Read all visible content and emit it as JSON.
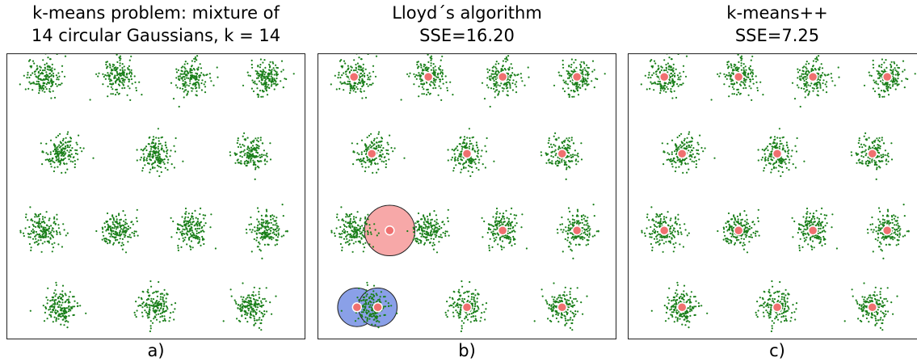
{
  "chart_data": [
    {
      "type": "scatter",
      "panel_label": "a)",
      "title_lines": [
        "k-means problem: mixture of",
        "14 circular Gaussians, k = 14"
      ],
      "point_color": "#1a7f1a",
      "clusters": [
        [
          0.12,
          0.92
        ],
        [
          0.37,
          0.92
        ],
        [
          0.62,
          0.92
        ],
        [
          0.87,
          0.92
        ],
        [
          0.18,
          0.65
        ],
        [
          0.5,
          0.65
        ],
        [
          0.82,
          0.65
        ],
        [
          0.12,
          0.38
        ],
        [
          0.37,
          0.38
        ],
        [
          0.62,
          0.38
        ],
        [
          0.87,
          0.38
        ],
        [
          0.18,
          0.11
        ],
        [
          0.5,
          0.11
        ],
        [
          0.82,
          0.11
        ]
      ],
      "centroids": [],
      "highlight_circles": []
    },
    {
      "type": "scatter",
      "panel_label": "b)",
      "title_lines": [
        "Lloyd´s algorithm",
        "SSE=16.20"
      ],
      "point_color": "#1a7f1a",
      "centroid_color": "#f07070",
      "clusters": [
        [
          0.12,
          0.92
        ],
        [
          0.37,
          0.92
        ],
        [
          0.62,
          0.92
        ],
        [
          0.87,
          0.92
        ],
        [
          0.18,
          0.65
        ],
        [
          0.5,
          0.65
        ],
        [
          0.82,
          0.65
        ],
        [
          0.12,
          0.38
        ],
        [
          0.37,
          0.38
        ],
        [
          0.62,
          0.38
        ],
        [
          0.87,
          0.38
        ],
        [
          0.18,
          0.11
        ],
        [
          0.5,
          0.11
        ],
        [
          0.82,
          0.11
        ]
      ],
      "centroids": [
        [
          0.12,
          0.92
        ],
        [
          0.37,
          0.92
        ],
        [
          0.62,
          0.92
        ],
        [
          0.87,
          0.92
        ],
        [
          0.18,
          0.65
        ],
        [
          0.5,
          0.65
        ],
        [
          0.82,
          0.65
        ],
        [
          0.24,
          0.38
        ],
        [
          0.62,
          0.38
        ],
        [
          0.87,
          0.38
        ],
        [
          0.13,
          0.11
        ],
        [
          0.2,
          0.11
        ],
        [
          0.5,
          0.11
        ],
        [
          0.82,
          0.11
        ]
      ],
      "highlight_circles": [
        {
          "center": [
            0.24,
            0.38
          ],
          "r": 0.085,
          "fill": "#f7a8a8"
        },
        {
          "center": [
            0.13,
            0.11
          ],
          "r": 0.065,
          "fill": "#8aa0e8"
        },
        {
          "center": [
            0.2,
            0.11
          ],
          "r": 0.065,
          "fill": "#8aa0e8"
        }
      ]
    },
    {
      "type": "scatter",
      "panel_label": "c)",
      "title_lines": [
        "k-means++",
        "SSE=7.25"
      ],
      "point_color": "#1a7f1a",
      "centroid_color": "#f07070",
      "clusters": [
        [
          0.12,
          0.92
        ],
        [
          0.37,
          0.92
        ],
        [
          0.62,
          0.92
        ],
        [
          0.87,
          0.92
        ],
        [
          0.18,
          0.65
        ],
        [
          0.5,
          0.65
        ],
        [
          0.82,
          0.65
        ],
        [
          0.12,
          0.38
        ],
        [
          0.37,
          0.38
        ],
        [
          0.62,
          0.38
        ],
        [
          0.87,
          0.38
        ],
        [
          0.18,
          0.11
        ],
        [
          0.5,
          0.11
        ],
        [
          0.82,
          0.11
        ]
      ],
      "centroids": [
        [
          0.12,
          0.92
        ],
        [
          0.37,
          0.92
        ],
        [
          0.62,
          0.92
        ],
        [
          0.87,
          0.92
        ],
        [
          0.18,
          0.65
        ],
        [
          0.5,
          0.65
        ],
        [
          0.82,
          0.65
        ],
        [
          0.12,
          0.38
        ],
        [
          0.37,
          0.38
        ],
        [
          0.62,
          0.38
        ],
        [
          0.87,
          0.38
        ],
        [
          0.18,
          0.11
        ],
        [
          0.5,
          0.11
        ],
        [
          0.82,
          0.11
        ]
      ],
      "highlight_circles": []
    }
  ]
}
